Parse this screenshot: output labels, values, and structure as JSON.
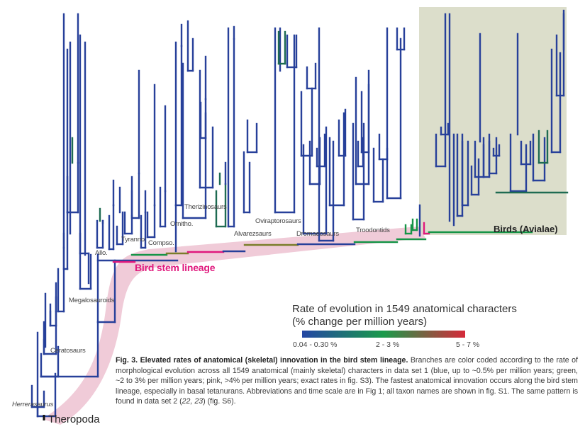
{
  "figure": {
    "clade_labels": [
      {
        "id": "herrerasaurus",
        "text": "Herrerasaurus",
        "italic": true
      },
      {
        "id": "ceratosaurs",
        "text": "Ceratosaurs"
      },
      {
        "id": "megalosauroids",
        "text": "Megalosauroids"
      },
      {
        "id": "allo",
        "text": "Allo."
      },
      {
        "id": "tyranno",
        "text": "Tyranno."
      },
      {
        "id": "compso",
        "text": "Compso."
      },
      {
        "id": "ornitho",
        "text": "Ornitho."
      },
      {
        "id": "therizinosaurs",
        "text": "Therizinosaurs"
      },
      {
        "id": "alvarezsaurs",
        "text": "Alvarezsaurs"
      },
      {
        "id": "oviraptorosaurs",
        "text": "Oviraptorosaurs"
      },
      {
        "id": "dromaeosaurs",
        "text": "Dromaeosaurs"
      },
      {
        "id": "troodontids",
        "text": "Troodontids"
      }
    ],
    "root_label": "Theropoda",
    "stem_label": "Bird stem lineage",
    "birds_label": "Birds (Avialae)",
    "colors": {
      "blue": "#27409a",
      "dark_green": "#1e6b52",
      "green": "#159447",
      "olive": "#7b7d2a",
      "pink": "#e0197d",
      "stem_band": "#f0cbd8",
      "birds_bg": "#dcdecb"
    }
  },
  "legend": {
    "title_line1": "Rate of evolution in 1549 anatomical characters",
    "title_line2": "(% change per million years)",
    "gradient": [
      "#2446a4",
      "#1a9a4a",
      "#d62a3a"
    ],
    "ticks": [
      "0.04 - 0.30 %",
      "2 - 3 %",
      "5 - 7 %"
    ]
  },
  "caption": {
    "title": "Fig. 3. Elevated rates of anatomical (skeletal) innovation in the bird stem lineage.",
    "body_1": " Branches are color coded according to the rate of morphological evolution across all 1549 anatomical (mainly skeletal) characters in data set 1 (blue, up to ~0.5% per million years; green, ~2 to 3% per million years; pink, >4% per million years; exact rates in fig. S3). The fastest anatomical innovation occurs along the bird stem lineage, especially in basal tetanurans. Abbreviations and time scale are in Fig 1; all taxon names are shown in fig. S1. The same pattern is found in data set 2 (",
    "refs": "22, 23",
    "body_2": ") (fig. S6)."
  }
}
